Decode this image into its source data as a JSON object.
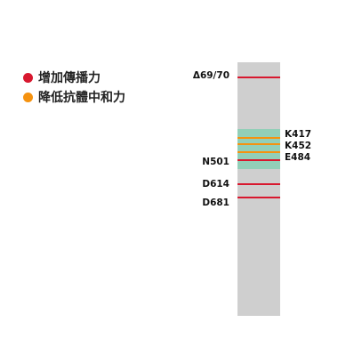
{
  "legend": {
    "items": [
      {
        "label": "增加傳播力",
        "color": "#d8182f"
      },
      {
        "label": "降低抗體中和力",
        "color": "#f5920f"
      }
    ]
  },
  "bar": {
    "color": "#cfcfcf",
    "region_color": "#92cfb8"
  },
  "mutations": {
    "del69_70": {
      "label": "Δ69/70",
      "color": "#d8182f"
    },
    "k417": {
      "label": "K417",
      "color": "#f5920f"
    },
    "k452": {
      "label": "K452",
      "color": "#f5920f"
    },
    "e484": {
      "label": "E484",
      "color": "#f5920f"
    },
    "n501": {
      "label": "N501",
      "color": "#d8182f"
    },
    "d614": {
      "label": "D614",
      "color": "#d8182f"
    },
    "d681": {
      "label": "D681",
      "color": "#d8182f"
    }
  }
}
